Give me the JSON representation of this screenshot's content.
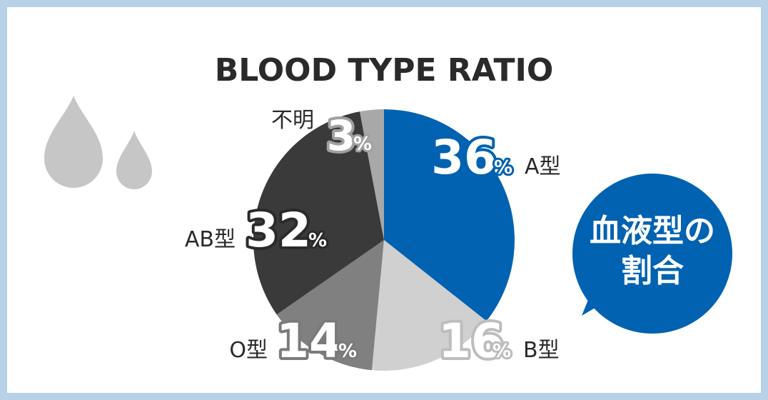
{
  "chart_data": {
    "type": "pie",
    "title": "BLOOD TYPE RATIO",
    "badge": "血液型の割合",
    "badge_lines": [
      "血液型の",
      "割合"
    ],
    "slices": [
      {
        "label": "A型",
        "value": 36,
        "color": "#0062b1"
      },
      {
        "label": "B型",
        "value": 16,
        "color": "#d0d0d0"
      },
      {
        "label": "O型",
        "value": 14,
        "color": "#808080"
      },
      {
        "label": "AB型",
        "value": 32,
        "color": "#3a3a3a"
      },
      {
        "label": "不明",
        "value": 3,
        "color": "#a8a8a8"
      }
    ],
    "unit": "%"
  },
  "colors": {
    "frame": "#b7d1e8",
    "panel": "#ffffff",
    "badge": "#0062b1",
    "drop": "#c6c6c6"
  }
}
